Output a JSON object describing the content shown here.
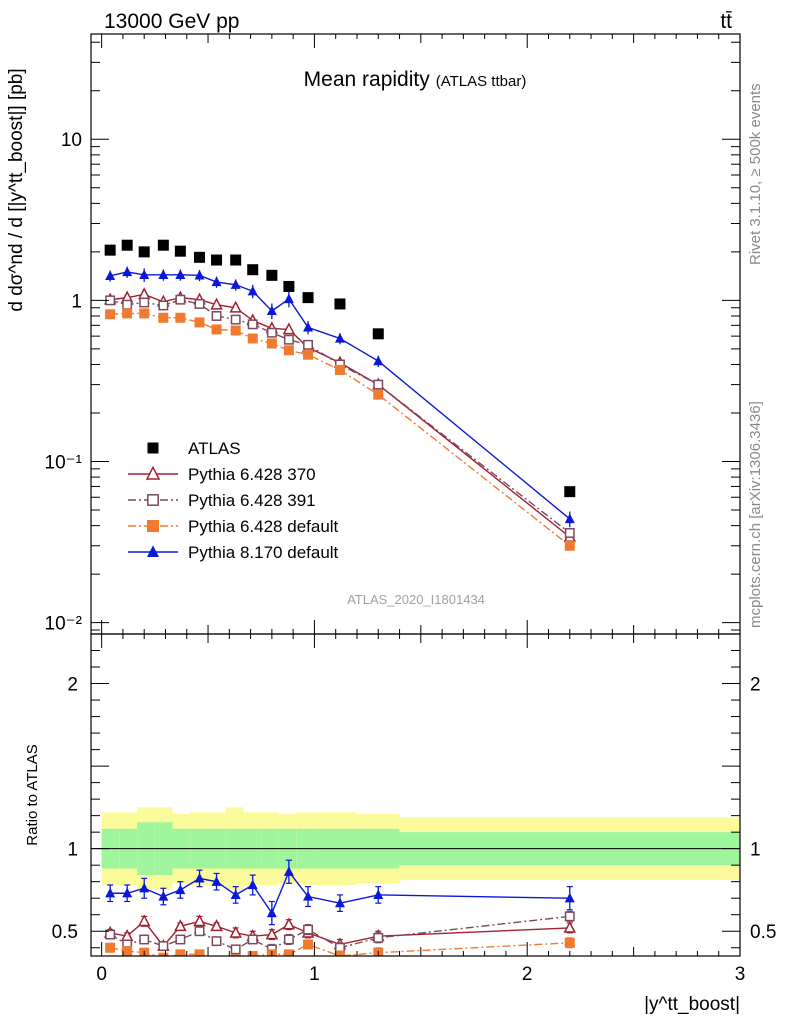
{
  "header": {
    "energy": "13000 GeV pp",
    "process": "tt̄"
  },
  "sidebar": {
    "rivet": "Rivet 3.1.10, ≥ 500k events",
    "mcplots": "mcplots.cern.ch [arXiv:1306.3436]"
  },
  "chart_data": {
    "type": "scatter",
    "title": "Mean rapidity",
    "subtitle": "(ATLAS ttbar)",
    "analysis_id": "ATLAS_2020_I1801434",
    "xlabel": "|y^tt_boost|",
    "ylabel": "d dσ^nd / d [|y^tt_boost|] [pb]",
    "ratio_ylabel": "Ratio to ATLAS",
    "x_ticks": [
      "0",
      "1",
      "2",
      "3"
    ],
    "main_y_ticks": [
      "10⁻²",
      "10⁻¹",
      "1",
      "10"
    ],
    "ratio_y_ticks": [
      "0.5",
      "1",
      "2"
    ],
    "main": {
      "yscale": "log",
      "ylim": [
        0.0085,
        45
      ],
      "xlim": [
        -0.05,
        3.0
      ]
    },
    "ratio": {
      "ylim": [
        0.35,
        2.3
      ],
      "xlim": [
        -0.05,
        3.0
      ]
    },
    "bin_edges": [
      0,
      0.083,
      0.167,
      0.25,
      0.333,
      0.417,
      0.5,
      0.583,
      0.667,
      0.75,
      0.833,
      0.917,
      1.0,
      1.2,
      1.4,
      3.0
    ],
    "x": [
      0.04,
      0.12,
      0.2,
      0.29,
      0.37,
      0.46,
      0.54,
      0.63,
      0.71,
      0.8,
      0.88,
      0.97,
      1.12,
      1.3,
      2.2
    ],
    "legend": {
      "position": "lower-left"
    },
    "uncertainty_bands": {
      "inner_rel": [
        0.12,
        0.12,
        0.16,
        0.16,
        0.12,
        0.12,
        0.12,
        0.12,
        0.12,
        0.12,
        0.12,
        0.12,
        0.12,
        0.12,
        0.1
      ],
      "outer_rel": [
        0.22,
        0.22,
        0.25,
        0.25,
        0.21,
        0.22,
        0.22,
        0.25,
        0.22,
        0.22,
        0.21,
        0.22,
        0.22,
        0.21,
        0.19
      ]
    },
    "series": [
      {
        "name": "ATLAS",
        "color": "#000000",
        "marker": "square",
        "line": "none",
        "values": [
          2.05,
          2.2,
          2.0,
          2.2,
          2.02,
          1.85,
          1.78,
          1.78,
          1.55,
          1.43,
          1.22,
          1.04,
          0.95,
          0.62,
          0.065
        ],
        "ratio": [
          1,
          1,
          1,
          1,
          1,
          1,
          1,
          1,
          1,
          1,
          1,
          1,
          1,
          1,
          1
        ],
        "ratio_err": [
          0,
          0,
          0,
          0,
          0,
          0,
          0,
          0,
          0,
          0,
          0,
          0,
          0,
          0,
          0
        ]
      },
      {
        "name": "Pythia 6.428 370",
        "color": "#a0202e",
        "marker": "triangle-open",
        "line": "solid",
        "values": [
          1.01,
          1.04,
          1.09,
          0.98,
          1.04,
          1.01,
          0.94,
          0.9,
          0.75,
          0.67,
          0.66,
          0.51,
          0.41,
          0.3,
          0.034
        ],
        "ratio": [
          0.49,
          0.47,
          0.56,
          0.41,
          0.53,
          0.56,
          0.53,
          0.49,
          0.47,
          0.48,
          0.54,
          0.49,
          0.42,
          0.47,
          0.52
        ],
        "ratio_err": [
          0.02,
          0.02,
          0.03,
          0.02,
          0.02,
          0.03,
          0.02,
          0.03,
          0.03,
          0.03,
          0.03,
          0.03,
          0.03,
          0.03,
          0.03
        ]
      },
      {
        "name": "Pythia 6.428 391",
        "color": "#7a4a5e",
        "marker": "square-open",
        "line": "dashdot",
        "values": [
          1.0,
          0.94,
          0.97,
          0.93,
          1.01,
          0.95,
          0.8,
          0.76,
          0.71,
          0.63,
          0.57,
          0.53,
          0.4,
          0.3,
          0.036
        ],
        "ratio": [
          0.48,
          0.42,
          0.45,
          0.41,
          0.45,
          0.5,
          0.44,
          0.39,
          0.45,
          0.39,
          0.45,
          0.51,
          0.4,
          0.46,
          0.59
        ],
        "ratio_err": [
          0.02,
          0.02,
          0.02,
          0.02,
          0.02,
          0.02,
          0.02,
          0.02,
          0.02,
          0.03,
          0.03,
          0.03,
          0.03,
          0.03,
          0.03
        ]
      },
      {
        "name": "Pythia 6.428 default",
        "color": "#f07b30",
        "marker": "square",
        "line": "dashdot",
        "values": [
          0.82,
          0.83,
          0.83,
          0.78,
          0.78,
          0.73,
          0.66,
          0.65,
          0.58,
          0.54,
          0.49,
          0.46,
          0.37,
          0.26,
          0.03
        ],
        "ratio": [
          0.4,
          0.38,
          0.37,
          0.34,
          0.36,
          0.36,
          0.32,
          0.33,
          0.35,
          0.36,
          0.36,
          0.42,
          0.35,
          0.37,
          0.43
        ],
        "ratio_err": [
          0.02,
          0.02,
          0.02,
          0.02,
          0.02,
          0.02,
          0.02,
          0.02,
          0.02,
          0.02,
          0.02,
          0.02,
          0.03,
          0.03,
          0.03
        ]
      },
      {
        "name": "Pythia 8.170 default",
        "color": "#0a18d8",
        "marker": "triangle",
        "line": "solid",
        "values": [
          1.42,
          1.5,
          1.44,
          1.44,
          1.44,
          1.43,
          1.3,
          1.25,
          1.14,
          0.86,
          1.02,
          0.68,
          0.58,
          0.42,
          0.044
        ],
        "ratio": [
          0.73,
          0.73,
          0.76,
          0.71,
          0.75,
          0.82,
          0.8,
          0.72,
          0.78,
          0.61,
          0.86,
          0.71,
          0.67,
          0.72,
          0.7
        ],
        "ratio_err": [
          0.05,
          0.05,
          0.06,
          0.05,
          0.05,
          0.05,
          0.05,
          0.05,
          0.06,
          0.07,
          0.07,
          0.06,
          0.05,
          0.05,
          0.07
        ]
      }
    ]
  }
}
